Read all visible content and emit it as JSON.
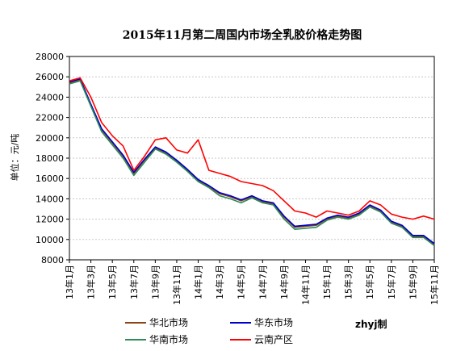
{
  "chart_data": {
    "type": "line",
    "title": "2015年11月第二周国内市场全乳胶价格走势图",
    "ylabel": "单位：元/吨",
    "xlabel": "",
    "ylim": [
      8000,
      28000
    ],
    "yticks": [
      8000,
      10000,
      12000,
      14000,
      16000,
      18000,
      20000,
      22000,
      24000,
      26000,
      28000
    ],
    "ytick_labels": [
      "8000",
      "10000",
      "12000",
      "14000",
      "16000",
      "18000",
      "20000",
      "22000",
      "24000",
      "26000",
      "28000"
    ],
    "x_start": "2013-01",
    "x_end": "2015-11",
    "xtick_labels": [
      "13年1月",
      "13年3月",
      "13年5月",
      "13年7月",
      "13年9月",
      "13年11月",
      "14年1月",
      "14年3月",
      "14年5月",
      "14年7月",
      "14年9月",
      "14年11月",
      "15年1月",
      "15年3月",
      "15年5月",
      "15年7月",
      "15年9月",
      "15年11月"
    ],
    "grid": true,
    "legend_position": "bottom",
    "credit": "zhyj制",
    "series": [
      {
        "name": "华北市场",
        "color": "#8B4513",
        "x": [
          "2013-01",
          "2013-02",
          "2013-03",
          "2013-04",
          "2013-05",
          "2013-06",
          "2013-07",
          "2013-08",
          "2013-09",
          "2013-10",
          "2013-11",
          "2013-12",
          "2014-01",
          "2014-02",
          "2014-03",
          "2014-04",
          "2014-05",
          "2014-06",
          "2014-07",
          "2014-08",
          "2014-09",
          "2014-10",
          "2014-11",
          "2014-12",
          "2015-01",
          "2015-02",
          "2015-03",
          "2015-04",
          "2015-05",
          "2015-06",
          "2015-07",
          "2015-08",
          "2015-09",
          "2015-10",
          "2015-11"
        ],
        "values": [
          25400,
          25700,
          23200,
          20800,
          19500,
          18200,
          16500,
          17800,
          19000,
          18500,
          17700,
          16800,
          15800,
          15200,
          14500,
          14200,
          13800,
          14200,
          13700,
          13500,
          12200,
          11200,
          11300,
          11400,
          12000,
          12300,
          12100,
          12500,
          13300,
          12800,
          11700,
          11300,
          10300,
          10300,
          9500
        ]
      },
      {
        "name": "华东市场",
        "color": "#0000CC",
        "x": [
          "2013-01",
          "2013-02",
          "2013-03",
          "2013-04",
          "2013-05",
          "2013-06",
          "2013-07",
          "2013-08",
          "2013-09",
          "2013-10",
          "2013-11",
          "2013-12",
          "2014-01",
          "2014-02",
          "2014-03",
          "2014-04",
          "2014-05",
          "2014-06",
          "2014-07",
          "2014-08",
          "2014-09",
          "2014-10",
          "2014-11",
          "2014-12",
          "2015-01",
          "2015-02",
          "2015-03",
          "2015-04",
          "2015-05",
          "2015-06",
          "2015-07",
          "2015-08",
          "2015-09",
          "2015-10",
          "2015-11"
        ],
        "values": [
          25500,
          25800,
          23300,
          20900,
          19600,
          18300,
          16600,
          17900,
          19100,
          18600,
          17800,
          16900,
          15900,
          15300,
          14600,
          14300,
          13900,
          14300,
          13800,
          13600,
          12300,
          11300,
          11400,
          11500,
          12100,
          12400,
          12200,
          12600,
          13400,
          12900,
          11800,
          11400,
          10400,
          10400,
          9600
        ]
      },
      {
        "name": "华南市场",
        "color": "#2E8B57",
        "x": [
          "2013-01",
          "2013-02",
          "2013-03",
          "2013-04",
          "2013-05",
          "2013-06",
          "2013-07",
          "2013-08",
          "2013-09",
          "2013-10",
          "2013-11",
          "2013-12",
          "2014-01",
          "2014-02",
          "2014-03",
          "2014-04",
          "2014-05",
          "2014-06",
          "2014-07",
          "2014-08",
          "2014-09",
          "2014-10",
          "2014-11",
          "2014-12",
          "2015-01",
          "2015-02",
          "2015-03",
          "2015-04",
          "2015-05",
          "2015-06",
          "2015-07",
          "2015-08",
          "2015-09",
          "2015-10",
          "2015-11"
        ],
        "values": [
          25300,
          25600,
          23100,
          20600,
          19300,
          18000,
          16300,
          17600,
          18900,
          18400,
          17600,
          16700,
          15700,
          15100,
          14300,
          14000,
          13600,
          14100,
          13600,
          13400,
          12000,
          11000,
          11100,
          11200,
          11900,
          12200,
          12000,
          12400,
          13200,
          12700,
          11600,
          11200,
          10200,
          10200,
          9400
        ]
      },
      {
        "name": "云南产区",
        "color": "#FF0000",
        "x": [
          "2013-01",
          "2013-02",
          "2013-03",
          "2013-04",
          "2013-05",
          "2013-06",
          "2013-07",
          "2013-08",
          "2013-09",
          "2013-10",
          "2013-11",
          "2013-12",
          "2014-01",
          "2014-02",
          "2014-03",
          "2014-04",
          "2014-05",
          "2014-06",
          "2014-07",
          "2014-08",
          "2014-09",
          "2014-10",
          "2014-11",
          "2014-12",
          "2015-01",
          "2015-02",
          "2015-03",
          "2015-04",
          "2015-05",
          "2015-06",
          "2015-07",
          "2015-08",
          "2015-09",
          "2015-10",
          "2015-11"
        ],
        "values": [
          25600,
          25900,
          24000,
          21500,
          20200,
          19200,
          16800,
          18200,
          19800,
          20000,
          18800,
          18500,
          19800,
          16800,
          16500,
          16200,
          15700,
          15500,
          15300,
          14800,
          13800,
          12800,
          12600,
          12200,
          12800,
          12600,
          12400,
          12800,
          13800,
          13400,
          12500,
          12200,
          12000,
          12300,
          12000
        ]
      }
    ]
  }
}
